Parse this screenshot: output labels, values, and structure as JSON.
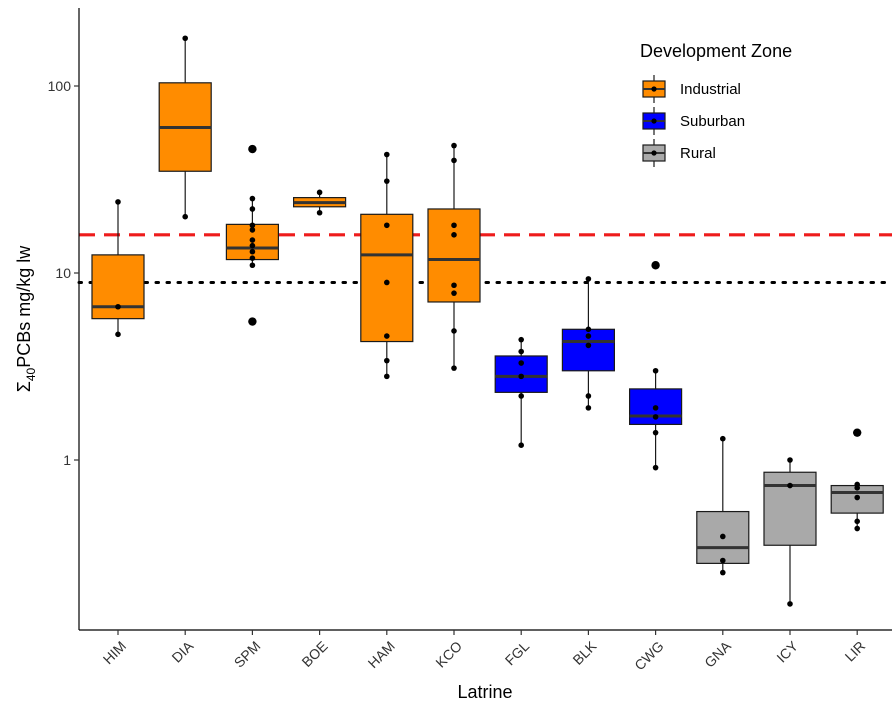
{
  "chart_data": {
    "type": "box",
    "title": "",
    "xlabel": "Latrine",
    "ylabel_prefix": "Σ",
    "ylabel_sub": "40",
    "ylabel_rest": "PCBs mg/kg lw",
    "y_scale": "log10",
    "ylim": [
      0.14,
      260
    ],
    "y_ticks": [
      1,
      10,
      100
    ],
    "y_tick_labels": [
      "1",
      "10",
      "100"
    ],
    "grid": false,
    "categories": [
      "HIM",
      "DIA",
      "SPM",
      "BOE",
      "HAM",
      "KCO",
      "FGL",
      "BLK",
      "CWG",
      "GNA",
      "ICY",
      "LIR"
    ],
    "reference_lines": [
      {
        "value": 16,
        "style": "dashed",
        "color": "#ee1c1c"
      },
      {
        "value": 8.9,
        "style": "dotted",
        "color": "#000000"
      }
    ],
    "legend": {
      "title": "Development Zone",
      "position": "top-right",
      "entries": [
        {
          "label": "Industrial",
          "color": "#ff8c00"
        },
        {
          "label": "Suburban",
          "color": "#0000ff"
        },
        {
          "label": "Rural",
          "color": "#a9a9a9"
        }
      ]
    },
    "boxes": [
      {
        "latrine": "HIM",
        "zone": "Industrial",
        "whisker_low": 4.7,
        "q1": 5.7,
        "median": 6.6,
        "q3": 12.5,
        "whisker_high": 24,
        "outliers": [],
        "points": [
          4.7,
          6.6,
          24
        ]
      },
      {
        "latrine": "DIA",
        "zone": "Industrial",
        "whisker_low": 20,
        "q1": 35,
        "median": 60,
        "q3": 104,
        "whisker_high": 180,
        "outliers": [],
        "points": [
          20,
          180
        ]
      },
      {
        "latrine": "SPM",
        "zone": "Industrial",
        "whisker_low": 11,
        "q1": 11.8,
        "median": 13.6,
        "q3": 18.2,
        "whisker_high": 25,
        "outliers": [
          5.5,
          46
        ],
        "points": [
          5.5,
          11,
          12,
          13,
          14,
          15,
          17,
          18,
          22,
          25,
          46
        ]
      },
      {
        "latrine": "BOE",
        "zone": "Industrial",
        "whisker_low": 21,
        "q1": 22.6,
        "median": 23.8,
        "q3": 25.3,
        "whisker_high": 27,
        "outliers": [],
        "points": [
          21,
          27
        ]
      },
      {
        "latrine": "HAM",
        "zone": "Industrial",
        "whisker_low": 2.8,
        "q1": 4.3,
        "median": 12.5,
        "q3": 20.6,
        "whisker_high": 43,
        "outliers": [],
        "points": [
          2.8,
          3.4,
          4.6,
          8.9,
          18,
          31,
          43
        ]
      },
      {
        "latrine": "KCO",
        "zone": "Industrial",
        "whisker_low": 3.1,
        "q1": 7,
        "median": 11.8,
        "q3": 22,
        "whisker_high": 48,
        "outliers": [],
        "points": [
          3.1,
          4.9,
          7.8,
          8.6,
          16,
          18,
          40,
          48
        ]
      },
      {
        "latrine": "FGL",
        "zone": "Suburban",
        "whisker_low": 1.2,
        "q1": 2.3,
        "median": 2.8,
        "q3": 3.6,
        "whisker_high": 4.4,
        "outliers": [],
        "points": [
          1.2,
          2.2,
          2.8,
          3.3,
          3.8,
          4.4
        ]
      },
      {
        "latrine": "BLK",
        "zone": "Suburban",
        "whisker_low": 1.9,
        "q1": 3,
        "median": 4.3,
        "q3": 5,
        "whisker_high": 9.3,
        "outliers": [],
        "points": [
          1.9,
          2.2,
          4.1,
          4.6,
          5,
          9.3
        ]
      },
      {
        "latrine": "CWG",
        "zone": "Suburban",
        "whisker_low": 0.91,
        "q1": 1.55,
        "median": 1.72,
        "q3": 2.4,
        "whisker_high": 3,
        "outliers": [
          11
        ],
        "points": [
          0.91,
          1.4,
          1.7,
          1.9,
          3,
          11
        ]
      },
      {
        "latrine": "GNA",
        "zone": "Rural",
        "whisker_low": 0.25,
        "q1": 0.28,
        "median": 0.34,
        "q3": 0.53,
        "whisker_high": 1.3,
        "outliers": [],
        "points": [
          0.25,
          0.29,
          0.39,
          1.3
        ]
      },
      {
        "latrine": "ICY",
        "zone": "Rural",
        "whisker_low": 0.17,
        "q1": 0.35,
        "median": 0.73,
        "q3": 0.86,
        "whisker_high": 1,
        "outliers": [],
        "points": [
          0.17,
          0.73,
          1
        ]
      },
      {
        "latrine": "LIR",
        "zone": "Rural",
        "whisker_low": 0.43,
        "q1": 0.52,
        "median": 0.67,
        "q3": 0.73,
        "whisker_high": 0.74,
        "outliers": [
          1.4
        ],
        "points": [
          0.43,
          0.47,
          0.63,
          0.71,
          0.74,
          1.4
        ]
      }
    ]
  }
}
